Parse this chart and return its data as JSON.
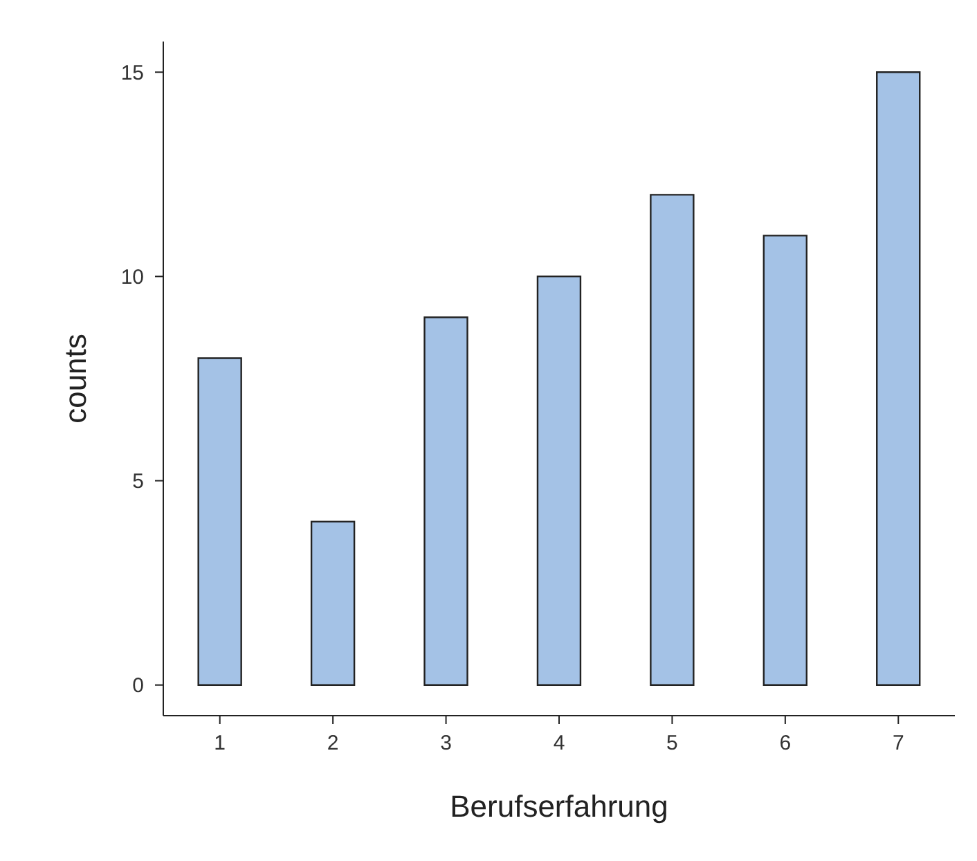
{
  "chart_data": {
    "type": "bar",
    "xlabel": "Berufserfahrung",
    "ylabel": "counts",
    "categories": [
      "1",
      "2",
      "3",
      "4",
      "5",
      "6",
      "7"
    ],
    "values": [
      8,
      4,
      9,
      10,
      12,
      11,
      15
    ],
    "color": "#a4c2e6",
    "ylim": [
      -0.75,
      15.75
    ],
    "yticks": [
      0,
      5,
      10,
      15
    ],
    "grid": false,
    "legend": false
  }
}
